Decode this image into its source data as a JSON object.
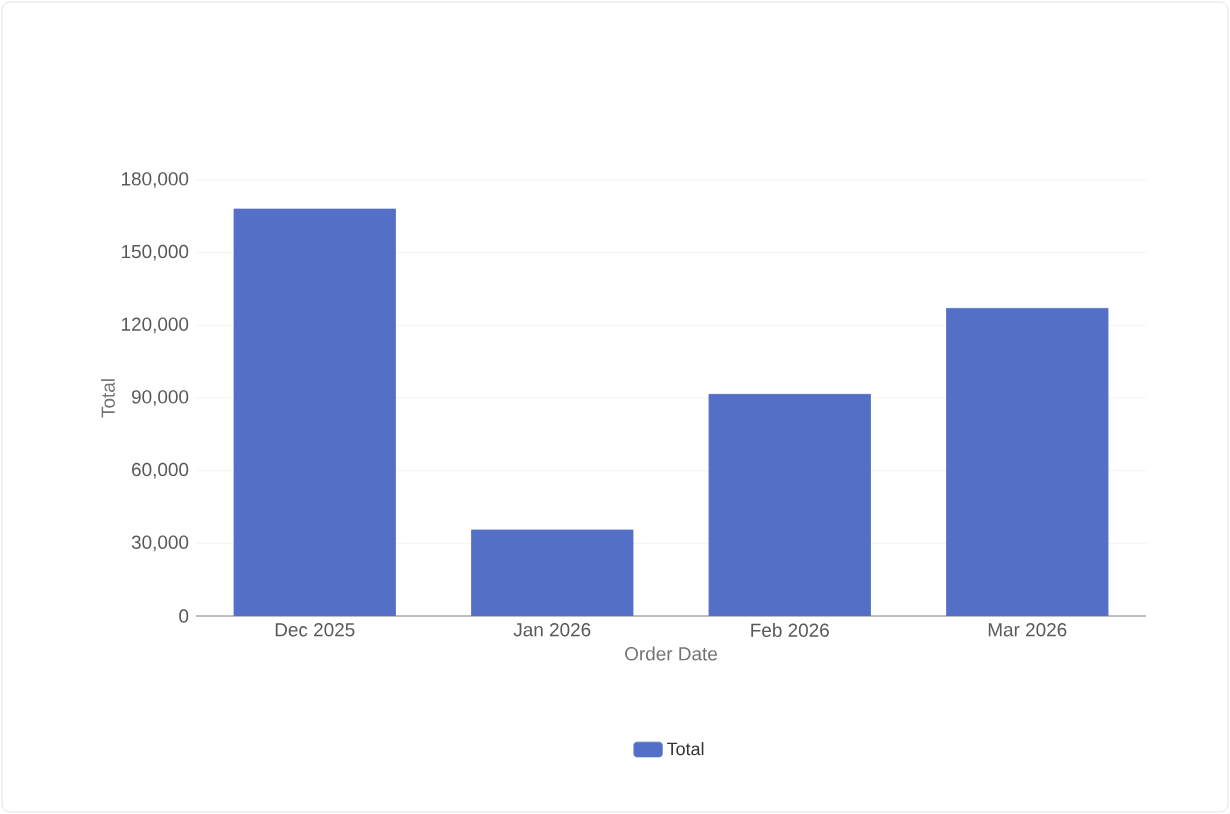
{
  "chart_data": {
    "type": "bar",
    "xlabel": "Order Date",
    "ylabel": "Total",
    "categories": [
      "Dec 2025",
      "Jan 2026",
      "Feb 2026",
      "Mar 2026"
    ],
    "series": [
      {
        "name": "Total",
        "color": "#5470c6",
        "values": [
          168000,
          35500,
          91500,
          127000
        ]
      }
    ],
    "ylim": [
      0,
      180000
    ],
    "yticks": [
      {
        "value": 0,
        "label": "0"
      },
      {
        "value": 30000,
        "label": "30,000"
      },
      {
        "value": 60000,
        "label": "60,000"
      },
      {
        "value": 90000,
        "label": "90,000"
      },
      {
        "value": 120000,
        "label": "120,000"
      },
      {
        "value": 150000,
        "label": "150,000"
      },
      {
        "value": 180000,
        "label": "180,000"
      }
    ],
    "grid": "y",
    "legend": "bottom"
  }
}
